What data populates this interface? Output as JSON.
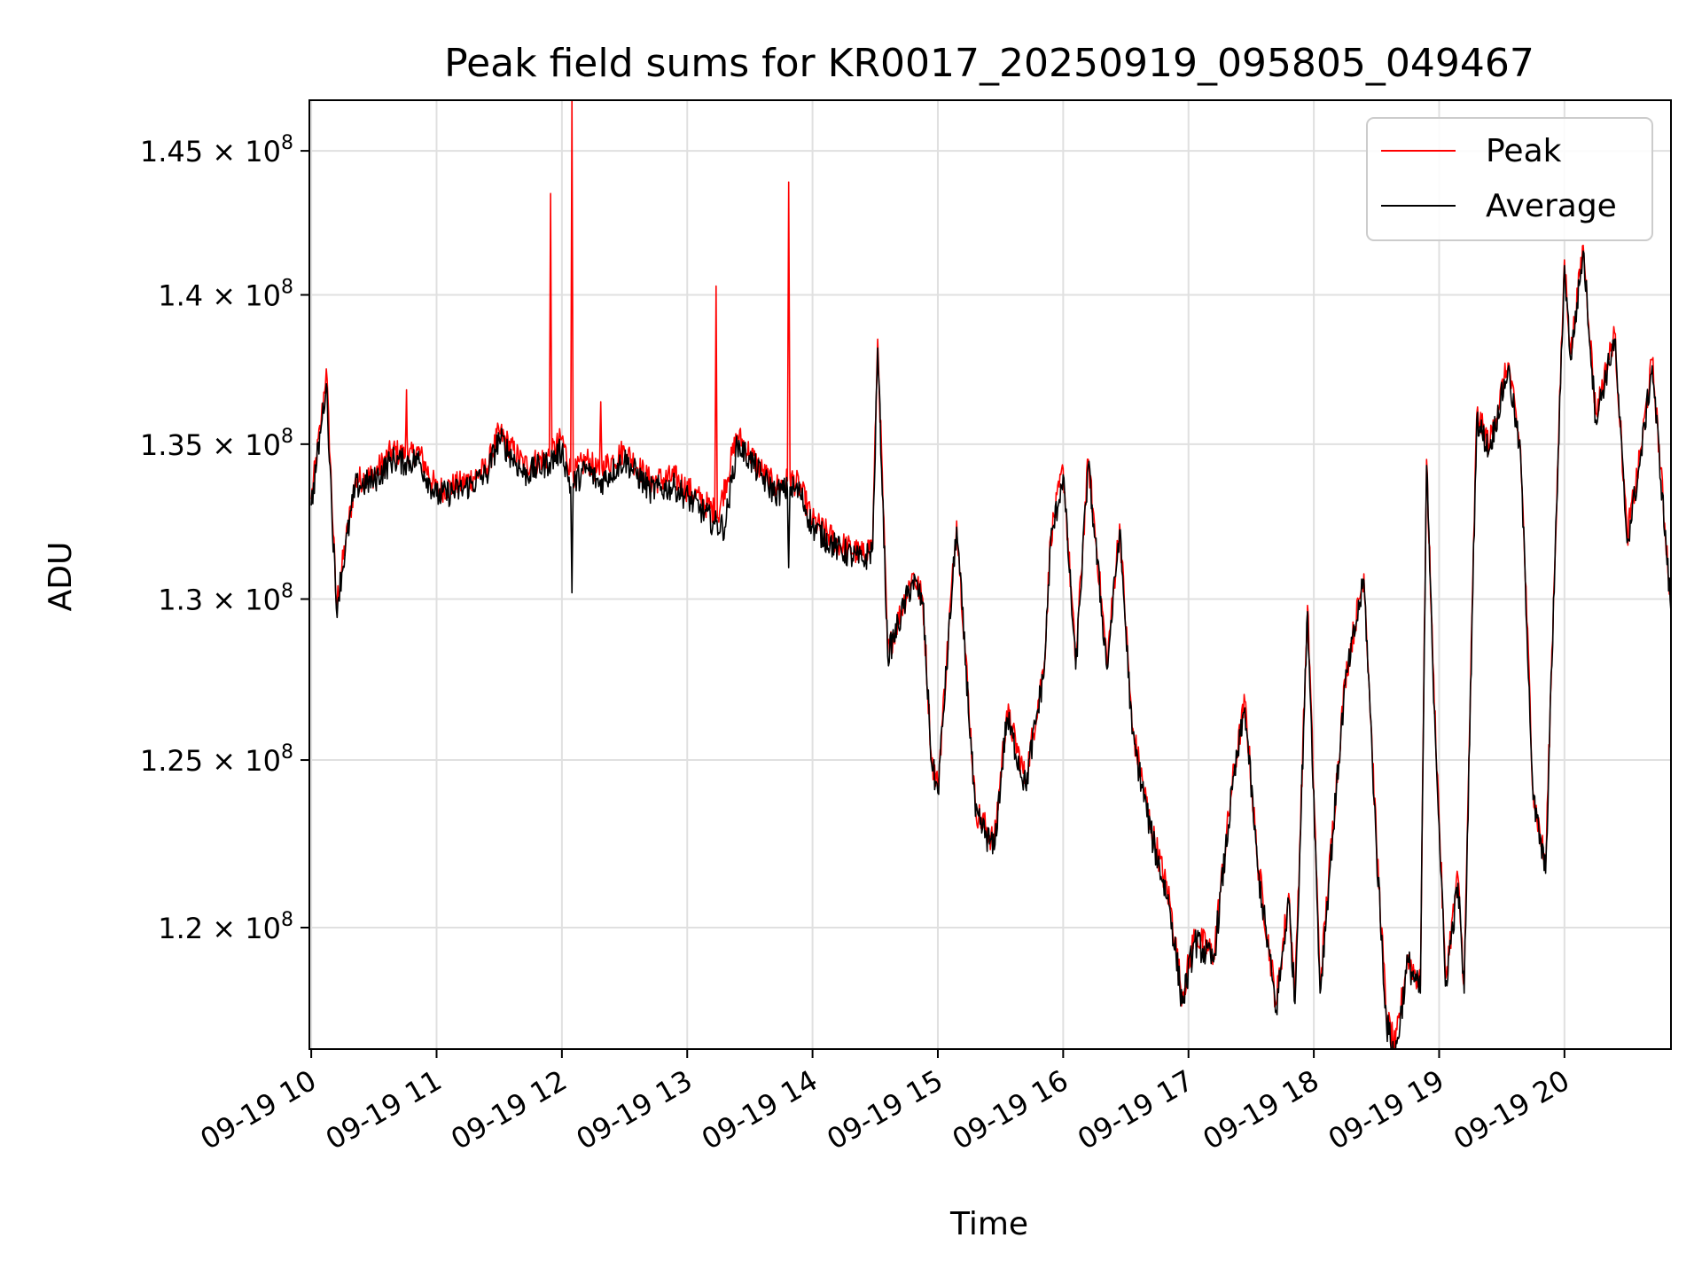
{
  "chart_data": {
    "type": "line",
    "title": "Peak field sums for KR0017_20250919_095805_049467",
    "xlabel": "Time",
    "ylabel": "ADU",
    "x_tick_labels": [
      "09-19 10",
      "09-19 11",
      "09-19 12",
      "09-19 13",
      "09-19 14",
      "09-19 15",
      "09-19 16",
      "09-19 17",
      "09-19 18",
      "09-19 19",
      "09-19 20"
    ],
    "x_ticks_hours": [
      10,
      11,
      12,
      13,
      14,
      15,
      16,
      17,
      18,
      19,
      20
    ],
    "xlim_hours": [
      9.985,
      20.85
    ],
    "y_scale": "log",
    "ylim": [
      116500000,
      146800000
    ],
    "y_ticks": [
      {
        "value": 120000000,
        "mantissa": "1.2",
        "exponent": "8"
      },
      {
        "value": 125000000,
        "mantissa": "1.25",
        "exponent": "8"
      },
      {
        "value": 130000000,
        "mantissa": "1.3",
        "exponent": "8"
      },
      {
        "value": 135000000,
        "mantissa": "1.35",
        "exponent": "8"
      },
      {
        "value": 140000000,
        "mantissa": "1.4",
        "exponent": "8"
      },
      {
        "value": 145000000,
        "mantissa": "1.45",
        "exponent": "8"
      }
    ],
    "grid": true,
    "legend_position": "top-right",
    "series": [
      {
        "name": "Peak",
        "color": "#ff0000",
        "x_hours": [
          10.0,
          10.08,
          10.12,
          10.2,
          10.35,
          10.5,
          10.65,
          10.75,
          10.76,
          10.77,
          10.85,
          11.0,
          11.2,
          11.4,
          11.5,
          11.7,
          11.9,
          11.91,
          11.92,
          12.0,
          12.07,
          12.08,
          12.09,
          12.2,
          12.3,
          12.31,
          12.32,
          12.5,
          12.7,
          12.9,
          13.1,
          13.22,
          13.23,
          13.24,
          13.4,
          13.5,
          13.6,
          13.7,
          13.8,
          13.81,
          13.82,
          13.9,
          14.0,
          14.2,
          14.4,
          14.48,
          14.52,
          14.6,
          14.8,
          14.88,
          14.95,
          15.0,
          15.15,
          15.3,
          15.45,
          15.55,
          15.7,
          15.85,
          15.9,
          16.0,
          16.1,
          16.2,
          16.35,
          16.45,
          16.55,
          16.7,
          16.85,
          16.95,
          17.05,
          17.2,
          17.35,
          17.45,
          17.55,
          17.7,
          17.8,
          17.85,
          17.95,
          18.05,
          18.25,
          18.4,
          18.5,
          18.58,
          18.65,
          18.75,
          18.85,
          18.9,
          18.95,
          19.05,
          19.15,
          19.2,
          19.3,
          19.4,
          19.55,
          19.65,
          19.75,
          19.85,
          20.0,
          20.05,
          20.15,
          20.25,
          20.4,
          20.5,
          20.6,
          20.7,
          20.85
        ],
        "values": [
          133200000,
          135800000,
          137500000,
          129800000,
          133800000,
          134000000,
          134800000,
          134600000,
          136800000,
          134500000,
          134800000,
          133500000,
          133700000,
          134200000,
          135400000,
          134300000,
          134600000,
          143500000,
          134700000,
          135200000,
          134100000,
          146800000,
          134000000,
          134500000,
          134000000,
          136400000,
          134200000,
          134800000,
          133800000,
          133900000,
          133200000,
          132800000,
          140300000,
          132600000,
          135300000,
          134700000,
          134100000,
          133600000,
          133800000,
          143900000,
          133900000,
          133600000,
          132500000,
          131800000,
          131400000,
          131800000,
          138500000,
          128300000,
          130800000,
          130000000,
          125000000,
          124200000,
          132500000,
          123500000,
          122500000,
          126500000,
          124400000,
          128000000,
          132000000,
          134200000,
          128000000,
          134500000,
          128000000,
          132400000,
          126000000,
          123000000,
          120800000,
          118000000,
          119800000,
          119200000,
          124300000,
          126800000,
          122000000,
          117800000,
          121000000,
          118000000,
          129800000,
          118300000,
          127500000,
          130800000,
          122500000,
          117400000,
          116500000,
          119200000,
          118300000,
          134500000,
          128000000,
          118500000,
          121500000,
          118300000,
          136000000,
          135000000,
          137700000,
          134800000,
          124000000,
          121800000,
          141200000,
          138000000,
          141700000,
          136000000,
          138700000,
          132000000,
          134500000,
          137800000,
          129800000
        ]
      },
      {
        "name": "Average",
        "color": "#000000",
        "x_hours": [
          10.0,
          10.08,
          10.12,
          10.2,
          10.35,
          10.5,
          10.65,
          10.75,
          10.85,
          11.0,
          11.2,
          11.4,
          11.5,
          11.7,
          11.9,
          12.0,
          12.07,
          12.08,
          12.09,
          12.2,
          12.3,
          12.5,
          12.7,
          12.9,
          13.1,
          13.22,
          13.3,
          13.4,
          13.5,
          13.6,
          13.7,
          13.8,
          13.81,
          13.82,
          13.9,
          14.0,
          14.2,
          14.4,
          14.48,
          14.52,
          14.6,
          14.8,
          14.88,
          14.95,
          15.0,
          15.15,
          15.3,
          15.45,
          15.55,
          15.7,
          15.85,
          15.9,
          16.0,
          16.1,
          16.2,
          16.35,
          16.45,
          16.55,
          16.7,
          16.85,
          16.95,
          17.05,
          17.2,
          17.35,
          17.45,
          17.55,
          17.7,
          17.8,
          17.85,
          17.95,
          18.05,
          18.25,
          18.4,
          18.5,
          18.58,
          18.65,
          18.75,
          18.85,
          18.9,
          18.95,
          19.05,
          19.15,
          19.2,
          19.3,
          19.4,
          19.55,
          19.65,
          19.75,
          19.85,
          20.0,
          20.05,
          20.15,
          20.25,
          20.4,
          20.5,
          20.6,
          20.7,
          20.85
        ],
        "values": [
          133000000,
          135600000,
          137000000,
          129700000,
          133600000,
          133800000,
          134500000,
          134400000,
          134500000,
          133300000,
          133500000,
          134000000,
          135200000,
          134000000,
          134400000,
          134800000,
          133600000,
          130200000,
          133700000,
          134200000,
          133700000,
          134500000,
          133500000,
          133600000,
          132900000,
          132400000,
          132300000,
          135000000,
          134500000,
          133900000,
          133400000,
          133500000,
          131000000,
          133600000,
          133400000,
          132300000,
          131600000,
          131200000,
          131600000,
          138200000,
          128200000,
          130600000,
          129900000,
          124900000,
          124000000,
          132300000,
          123300000,
          122300000,
          126300000,
          124200000,
          127800000,
          131800000,
          134000000,
          127800000,
          134300000,
          127800000,
          132200000,
          125800000,
          122800000,
          120600000,
          117800000,
          119600000,
          119000000,
          124100000,
          126600000,
          121800000,
          117600000,
          120800000,
          117800000,
          129600000,
          118100000,
          127300000,
          130600000,
          122300000,
          117200000,
          116300000,
          119000000,
          118100000,
          134300000,
          127800000,
          118300000,
          121300000,
          118100000,
          135800000,
          134800000,
          137500000,
          134600000,
          123800000,
          121600000,
          141000000,
          137800000,
          141500000,
          135800000,
          138500000,
          131800000,
          134300000,
          137600000,
          129600000
        ]
      }
    ]
  }
}
